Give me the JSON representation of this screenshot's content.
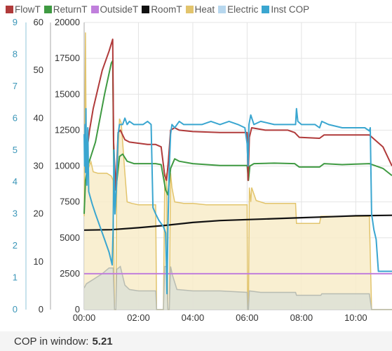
{
  "legend": [
    {
      "label": "FlowT",
      "color": "#b03a3a"
    },
    {
      "label": "ReturnT",
      "color": "#3f9a42"
    },
    {
      "label": "OutsideT",
      "color": "#c07fdc"
    },
    {
      "label": "RoomT",
      "color": "#111111"
    },
    {
      "label": "Heat",
      "color": "#e2c46c"
    },
    {
      "label": "Electric",
      "color": "#b7d7ee"
    },
    {
      "label": "Inst COP",
      "color": "#3aa6d0"
    }
  ],
  "footer": {
    "label": "COP in window:",
    "value": "5.21"
  },
  "chart_data": {
    "type": "line",
    "x_ticks": [
      "00:00",
      "02:00",
      "04:00",
      "06:00",
      "08:00",
      "10:00"
    ],
    "x_range": [
      "00:00",
      "11:20"
    ],
    "axes": {
      "cop": {
        "ticks": [
          0,
          1,
          2,
          3,
          4,
          5,
          6,
          7,
          8,
          9
        ],
        "range": [
          0,
          9
        ],
        "color": "#3a96b8"
      },
      "temp": {
        "ticks": [
          0,
          10,
          20,
          30,
          40,
          50,
          60
        ],
        "range": [
          0,
          60
        ],
        "color": "#333333"
      },
      "power": {
        "ticks": [
          0,
          2500,
          5000,
          7500,
          10000,
          12500,
          15000,
          17500,
          20000
        ],
        "range": [
          0,
          20000
        ],
        "color": "#333333"
      }
    },
    "grid": true,
    "series": [
      {
        "name": "Heat",
        "axis": "power",
        "style": "area",
        "color": "#e2c46c",
        "fill": "#f8ecc9",
        "points": [
          [
            "00:00",
            6500
          ],
          [
            "00:03",
            19300
          ],
          [
            "00:05",
            9500
          ],
          [
            "00:15",
            10300
          ],
          [
            "00:20",
            9600
          ],
          [
            "00:30",
            9500
          ],
          [
            "00:40",
            9500
          ],
          [
            "00:50",
            9500
          ],
          [
            "01:00",
            9300
          ],
          [
            "01:04",
            9000
          ],
          [
            "01:07",
            0
          ],
          [
            "01:10",
            0
          ],
          [
            "01:12",
            9000
          ],
          [
            "01:18",
            13300
          ],
          [
            "01:22",
            13000
          ],
          [
            "01:30",
            9500
          ],
          [
            "01:35",
            7500
          ],
          [
            "01:45",
            7400
          ],
          [
            "02:00",
            7300
          ],
          [
            "02:30",
            7300
          ],
          [
            "02:38",
            7300
          ],
          [
            "02:40",
            0
          ],
          [
            "02:55",
            0
          ],
          [
            "02:58",
            9000
          ],
          [
            "03:02",
            9500
          ],
          [
            "03:05",
            0
          ],
          [
            "03:08",
            0
          ],
          [
            "03:11",
            9500
          ],
          [
            "03:14",
            8500
          ],
          [
            "03:20",
            7500
          ],
          [
            "03:40",
            7400
          ],
          [
            "04:00",
            7400
          ],
          [
            "04:30",
            7300
          ],
          [
            "05:00",
            7300
          ],
          [
            "05:30",
            7300
          ],
          [
            "06:00",
            7300
          ],
          [
            "06:01",
            0
          ],
          [
            "06:03",
            0
          ],
          [
            "06:05",
            8500
          ],
          [
            "06:08",
            7500
          ],
          [
            "06:10",
            8500
          ],
          [
            "06:20",
            7600
          ],
          [
            "06:40",
            7400
          ],
          [
            "07:00",
            7400
          ],
          [
            "07:30",
            7400
          ],
          [
            "07:47",
            7400
          ],
          [
            "07:49",
            6000
          ],
          [
            "08:00",
            6000
          ],
          [
            "08:30",
            6000
          ],
          [
            "08:40",
            6000
          ],
          [
            "08:43",
            6500
          ],
          [
            "09:00",
            6500
          ],
          [
            "09:30",
            6500
          ],
          [
            "10:00",
            6500
          ],
          [
            "10:20",
            6500
          ],
          [
            "10:30",
            6500
          ],
          [
            "10:35",
            0
          ],
          [
            "11:20",
            0
          ]
        ]
      },
      {
        "name": "Electric",
        "axis": "power",
        "style": "area",
        "color": "#b8bcb2",
        "fill": "#dde1d6",
        "points": [
          [
            "00:00",
            1500
          ],
          [
            "00:05",
            1800
          ],
          [
            "00:20",
            2100
          ],
          [
            "00:40",
            2500
          ],
          [
            "00:55",
            2900
          ],
          [
            "01:04",
            2900
          ],
          [
            "01:07",
            0
          ],
          [
            "01:10",
            0
          ],
          [
            "01:12",
            2800
          ],
          [
            "01:20",
            3000
          ],
          [
            "01:30",
            1700
          ],
          [
            "01:40",
            1400
          ],
          [
            "02:00",
            1300
          ],
          [
            "02:38",
            1300
          ],
          [
            "02:40",
            0
          ],
          [
            "02:55",
            0
          ],
          [
            "02:58",
            3000
          ],
          [
            "03:02",
            3000
          ],
          [
            "03:05",
            0
          ],
          [
            "03:08",
            0
          ],
          [
            "03:11",
            3000
          ],
          [
            "03:15",
            2400
          ],
          [
            "03:25",
            1400
          ],
          [
            "04:00",
            1300
          ],
          [
            "05:00",
            1300
          ],
          [
            "06:00",
            1200
          ],
          [
            "06:01",
            0
          ],
          [
            "06:03",
            0
          ],
          [
            "06:05",
            1300
          ],
          [
            "06:30",
            1200
          ],
          [
            "07:47",
            1200
          ],
          [
            "07:49",
            1000
          ],
          [
            "08:43",
            1000
          ],
          [
            "08:45",
            1100
          ],
          [
            "10:30",
            1100
          ],
          [
            "10:35",
            0
          ],
          [
            "11:20",
            0
          ]
        ]
      },
      {
        "name": "OutsideT",
        "axis": "temp",
        "style": "line",
        "color": "#c07fdc",
        "width": 2,
        "points": [
          [
            "00:00",
            7.5
          ],
          [
            "11:20",
            7.5
          ]
        ]
      },
      {
        "name": "RoomT",
        "axis": "temp",
        "style": "line",
        "color": "#111111",
        "width": 2.2,
        "points": [
          [
            "00:00",
            16.6
          ],
          [
            "01:00",
            16.7
          ],
          [
            "02:00",
            17.1
          ],
          [
            "03:00",
            17.6
          ],
          [
            "04:00",
            18.2
          ],
          [
            "05:00",
            18.6
          ],
          [
            "06:00",
            18.8
          ],
          [
            "07:00",
            19.0
          ],
          [
            "08:00",
            19.2
          ],
          [
            "09:00",
            19.4
          ],
          [
            "10:00",
            19.6
          ],
          [
            "11:20",
            19.7
          ]
        ]
      },
      {
        "name": "ReturnT",
        "axis": "temp",
        "style": "line",
        "color": "#3f9a42",
        "width": 2,
        "points": [
          [
            "00:00",
            20
          ],
          [
            "00:03",
            27
          ],
          [
            "00:08",
            30
          ],
          [
            "00:25",
            35
          ],
          [
            "00:45",
            45
          ],
          [
            "01:00",
            51.5
          ],
          [
            "01:03",
            52
          ],
          [
            "01:06",
            25
          ],
          [
            "01:10",
            25
          ],
          [
            "01:18",
            32
          ],
          [
            "01:25",
            32.5
          ],
          [
            "01:35",
            31
          ],
          [
            "01:50",
            30.5
          ],
          [
            "02:20",
            30.5
          ],
          [
            "02:38",
            30.5
          ],
          [
            "02:50",
            30.3
          ],
          [
            "03:00",
            25
          ],
          [
            "03:05",
            24
          ],
          [
            "03:11",
            29.5
          ],
          [
            "03:20",
            31.5
          ],
          [
            "03:30",
            31
          ],
          [
            "04:00",
            30.5
          ],
          [
            "05:00",
            30.1
          ],
          [
            "06:00",
            30.1
          ],
          [
            "06:03",
            27
          ],
          [
            "06:06",
            30
          ],
          [
            "06:15",
            30.5
          ],
          [
            "07:00",
            30.6
          ],
          [
            "07:45",
            30.5
          ],
          [
            "07:55",
            29.8
          ],
          [
            "08:30",
            29.8
          ],
          [
            "08:40",
            29.8
          ],
          [
            "08:50",
            30.5
          ],
          [
            "09:30",
            30.3
          ],
          [
            "10:00",
            30.4
          ],
          [
            "10:30",
            30.5
          ],
          [
            "11:00",
            29.5
          ],
          [
            "11:20",
            28
          ]
        ]
      },
      {
        "name": "FlowT",
        "axis": "temp",
        "style": "line",
        "color": "#b03a3a",
        "width": 2,
        "points": [
          [
            "00:00",
            36
          ],
          [
            "00:03",
            37
          ],
          [
            "00:06",
            33
          ],
          [
            "00:12",
            37.5
          ],
          [
            "00:20",
            42
          ],
          [
            "00:40",
            50
          ],
          [
            "00:55",
            54
          ],
          [
            "01:03",
            56.5
          ],
          [
            "01:05",
            35
          ],
          [
            "01:10",
            25
          ],
          [
            "01:15",
            37
          ],
          [
            "01:20",
            37.5
          ],
          [
            "01:30",
            35.5
          ],
          [
            "01:40",
            35
          ],
          [
            "02:20",
            34.5
          ],
          [
            "02:38",
            34.5
          ],
          [
            "02:50",
            34
          ],
          [
            "02:58",
            28
          ],
          [
            "03:02",
            27
          ],
          [
            "03:06",
            31
          ],
          [
            "03:11",
            37.5
          ],
          [
            "03:20",
            38
          ],
          [
            "03:30",
            37.5
          ],
          [
            "04:00",
            37.2
          ],
          [
            "05:00",
            37
          ],
          [
            "06:00",
            37
          ],
          [
            "06:02",
            27
          ],
          [
            "06:05",
            36
          ],
          [
            "06:10",
            38
          ],
          [
            "06:40",
            37.5
          ],
          [
            "07:30",
            37.5
          ],
          [
            "07:45",
            37
          ],
          [
            "07:55",
            36
          ],
          [
            "08:40",
            35.8
          ],
          [
            "08:50",
            36.5
          ],
          [
            "09:30",
            36.5
          ],
          [
            "10:30",
            36.5
          ],
          [
            "11:00",
            34
          ],
          [
            "11:20",
            30
          ]
        ]
      },
      {
        "name": "Inst COP",
        "axis": "cop",
        "style": "line",
        "color": "#3aa6d0",
        "width": 2,
        "points": [
          [
            "00:00",
            5.5
          ],
          [
            "00:01",
            4.5
          ],
          [
            "00:02",
            5.8
          ],
          [
            "00:03",
            4.3
          ],
          [
            "00:04",
            6.3
          ],
          [
            "00:05",
            4.4
          ],
          [
            "00:06",
            3.9
          ],
          [
            "00:08",
            5.7
          ],
          [
            "00:10",
            3.7
          ],
          [
            "00:14",
            3.5
          ],
          [
            "00:18",
            3.3
          ],
          [
            "00:25",
            3.0
          ],
          [
            "00:35",
            2.6
          ],
          [
            "00:45",
            2.2
          ],
          [
            "00:55",
            1.8
          ],
          [
            "01:02",
            1.4
          ],
          [
            "01:04",
            2.5
          ],
          [
            "01:06",
            5.0
          ],
          [
            "01:08",
            3.0
          ],
          [
            "01:12",
            4.0
          ],
          [
            "01:15",
            5.5
          ],
          [
            "01:18",
            5.8
          ],
          [
            "01:25",
            5.8
          ],
          [
            "01:30",
            6.0
          ],
          [
            "01:35",
            5.8
          ],
          [
            "01:40",
            5.9
          ],
          [
            "01:50",
            5.8
          ],
          [
            "02:00",
            5.8
          ],
          [
            "02:10",
            5.8
          ],
          [
            "02:20",
            5.9
          ],
          [
            "02:28",
            5.8
          ],
          [
            "02:32",
            3.2
          ],
          [
            "02:38",
            3.0
          ],
          [
            "02:45",
            2.8
          ],
          [
            "02:55",
            2.6
          ],
          [
            "03:00",
            2.4
          ],
          [
            "03:02",
            1.3
          ],
          [
            "03:03",
            0.5
          ],
          [
            "03:05",
            2.5
          ],
          [
            "03:08",
            4.5
          ],
          [
            "03:11",
            5.5
          ],
          [
            "03:14",
            5.8
          ],
          [
            "03:20",
            5.7
          ],
          [
            "03:30",
            5.9
          ],
          [
            "03:40",
            5.8
          ],
          [
            "04:00",
            5.8
          ],
          [
            "04:20",
            5.8
          ],
          [
            "04:40",
            5.9
          ],
          [
            "05:00",
            5.8
          ],
          [
            "05:20",
            5.9
          ],
          [
            "05:40",
            5.8
          ],
          [
            "05:55",
            5.7
          ],
          [
            "06:00",
            5.2
          ],
          [
            "06:02",
            4.5
          ],
          [
            "06:04",
            5.8
          ],
          [
            "06:08",
            6.1
          ],
          [
            "06:15",
            5.8
          ],
          [
            "06:30",
            5.9
          ],
          [
            "07:00",
            5.8
          ],
          [
            "07:30",
            5.8
          ],
          [
            "07:47",
            5.8
          ],
          [
            "07:49",
            6.3
          ],
          [
            "07:52",
            5.9
          ],
          [
            "08:00",
            5.8
          ],
          [
            "08:30",
            5.8
          ],
          [
            "08:40",
            5.7
          ],
          [
            "08:45",
            5.9
          ],
          [
            "09:00",
            5.8
          ],
          [
            "09:30",
            5.7
          ],
          [
            "10:00",
            5.7
          ],
          [
            "10:20",
            5.7
          ],
          [
            "10:30",
            5.6
          ],
          [
            "10:32",
            5.7
          ],
          [
            "10:35",
            3.0
          ],
          [
            "10:40",
            2.5
          ],
          [
            "10:45",
            2.2
          ],
          [
            "10:50",
            1.2
          ],
          [
            "11:20",
            1.2
          ]
        ]
      }
    ]
  }
}
